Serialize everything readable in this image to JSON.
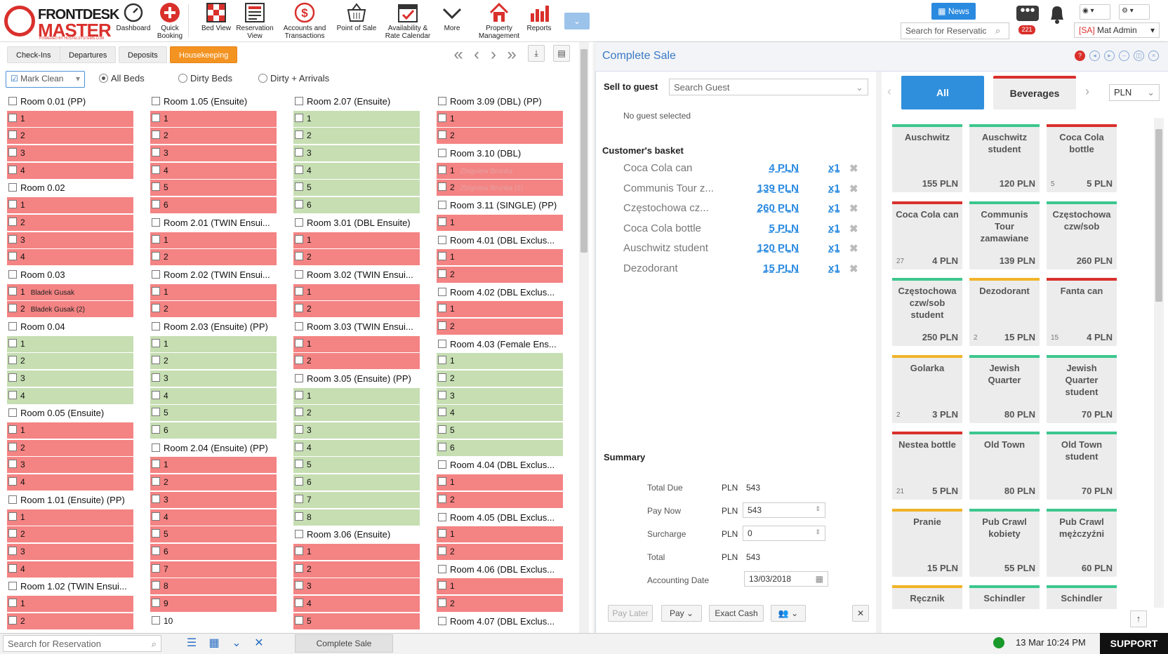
{
  "header": {
    "logo_top": "FRONTDESK",
    "logo_bottom": "MASTER",
    "logo_sub": "POWERED BY HOSTELSYSTEMS.COM",
    "nav": [
      {
        "label": "Dashboard",
        "icon": "dashboard-icon"
      },
      {
        "label": "Quick Booking",
        "icon": "plus-icon"
      },
      {
        "label": "Bed View",
        "icon": "grid-icon"
      },
      {
        "label": "Reservation View",
        "icon": "list-icon"
      },
      {
        "label": "Accounts and Transactions",
        "icon": "dollar-icon"
      },
      {
        "label": "Point of Sale",
        "icon": "basket-icon"
      },
      {
        "label": "Availability & Rate Calendar",
        "icon": "calendar-icon"
      },
      {
        "label": "More",
        "icon": "chevron-down-icon"
      },
      {
        "label": "Property Management",
        "icon": "home-icon"
      },
      {
        "label": "Reports",
        "icon": "bar-chart-icon"
      }
    ],
    "news_label": "News",
    "search_placeholder": "Search for Reservatic",
    "notifications_count": "221",
    "user_prefix": "[SA]",
    "user_name": "Mat Admin"
  },
  "tabs": [
    "Check-Ins",
    "Departures",
    "Deposits",
    "Housekeeping"
  ],
  "filters": {
    "mark_clean": "Mark Clean",
    "options": [
      "All Beds",
      "Dirty Beds",
      "Dirty + Arrivals"
    ],
    "selected": "All Beds"
  },
  "rooms_columns": [
    [
      {
        "name": "Room 0.01 (PP)",
        "beds": [
          [
            "1",
            "red",
            ""
          ],
          [
            "2",
            "red",
            ""
          ],
          [
            "3",
            "red",
            ""
          ],
          [
            "4",
            "red",
            ""
          ]
        ]
      },
      {
        "name": "Room 0.02",
        "beds": [
          [
            "1",
            "red",
            ""
          ],
          [
            "2",
            "red",
            ""
          ],
          [
            "3",
            "red",
            ""
          ],
          [
            "4",
            "red",
            ""
          ]
        ]
      },
      {
        "name": "Room 0.03",
        "beds": [
          [
            "1",
            "red",
            "Bladek Gusak"
          ],
          [
            "2",
            "red",
            "Bladek Gusak (2)"
          ]
        ]
      },
      {
        "name": "Room 0.04",
        "beds": [
          [
            "1",
            "green",
            ""
          ],
          [
            "2",
            "green",
            ""
          ],
          [
            "3",
            "green",
            ""
          ],
          [
            "4",
            "green",
            ""
          ]
        ]
      },
      {
        "name": "Room 0.05 (Ensuite)",
        "beds": [
          [
            "1",
            "red",
            ""
          ],
          [
            "2",
            "red",
            ""
          ],
          [
            "3",
            "red",
            ""
          ],
          [
            "4",
            "red",
            ""
          ]
        ]
      },
      {
        "name": "Room 1.01 (Ensuite) (PP)",
        "beds": [
          [
            "1",
            "red",
            ""
          ],
          [
            "2",
            "red",
            ""
          ],
          [
            "3",
            "red",
            ""
          ],
          [
            "4",
            "red",
            ""
          ]
        ]
      },
      {
        "name": "Room 1.02 (TWIN Ensui...",
        "beds": [
          [
            "1",
            "red",
            ""
          ],
          [
            "2",
            "red",
            ""
          ]
        ]
      }
    ],
    [
      {
        "name": "Room 1.05 (Ensuite)",
        "beds": [
          [
            "1",
            "red",
            ""
          ],
          [
            "2",
            "red",
            ""
          ],
          [
            "3",
            "red",
            ""
          ],
          [
            "4",
            "red",
            ""
          ],
          [
            "5",
            "red",
            ""
          ],
          [
            "6",
            "red",
            ""
          ]
        ]
      },
      {
        "name": "Room 2.01 (TWIN Ensui...",
        "beds": [
          [
            "1",
            "red",
            ""
          ],
          [
            "2",
            "red",
            ""
          ]
        ]
      },
      {
        "name": "Room 2.02 (TWIN Ensui...",
        "beds": [
          [
            "1",
            "red",
            ""
          ],
          [
            "2",
            "red",
            ""
          ]
        ]
      },
      {
        "name": "Room 2.03 (Ensuite) (PP)",
        "beds": [
          [
            "1",
            "green",
            ""
          ],
          [
            "2",
            "green",
            ""
          ],
          [
            "3",
            "green",
            ""
          ],
          [
            "4",
            "green",
            ""
          ],
          [
            "5",
            "green",
            ""
          ],
          [
            "6",
            "green",
            ""
          ]
        ]
      },
      {
        "name": "Room 2.04 (Ensuite) (PP)",
        "beds": [
          [
            "1",
            "red",
            ""
          ],
          [
            "2",
            "red",
            ""
          ],
          [
            "3",
            "red",
            ""
          ],
          [
            "4",
            "red",
            ""
          ],
          [
            "5",
            "red",
            ""
          ],
          [
            "6",
            "red",
            ""
          ],
          [
            "7",
            "red",
            ""
          ],
          [
            "8",
            "red",
            ""
          ],
          [
            "9",
            "red",
            ""
          ],
          [
            "10",
            "white",
            ""
          ]
        ]
      }
    ],
    [
      {
        "name": "Room 2.07 (Ensuite)",
        "beds": [
          [
            "1",
            "green",
            ""
          ],
          [
            "2",
            "green",
            ""
          ],
          [
            "3",
            "green",
            ""
          ],
          [
            "4",
            "green",
            ""
          ],
          [
            "5",
            "green",
            ""
          ],
          [
            "6",
            "green",
            ""
          ]
        ]
      },
      {
        "name": "Room 3.01 (DBL Ensuite)",
        "beds": [
          [
            "1",
            "red",
            ""
          ],
          [
            "2",
            "red",
            ""
          ]
        ]
      },
      {
        "name": "Room 3.02 (TWIN Ensui...",
        "beds": [
          [
            "1",
            "red",
            ""
          ],
          [
            "2",
            "red",
            ""
          ]
        ]
      },
      {
        "name": "Room 3.03 (TWIN Ensui...",
        "beds": [
          [
            "1",
            "red",
            ""
          ],
          [
            "2",
            "red",
            ""
          ]
        ]
      },
      {
        "name": "Room 3.05 (Ensuite) (PP)",
        "beds": [
          [
            "1",
            "green",
            ""
          ],
          [
            "2",
            "green",
            ""
          ],
          [
            "3",
            "green",
            ""
          ],
          [
            "4",
            "green",
            ""
          ],
          [
            "5",
            "green",
            ""
          ],
          [
            "6",
            "green",
            ""
          ],
          [
            "7",
            "green",
            ""
          ],
          [
            "8",
            "green",
            ""
          ]
        ]
      },
      {
        "name": "Room 3.06 (Ensuite)",
        "beds": [
          [
            "1",
            "red",
            ""
          ],
          [
            "2",
            "red",
            ""
          ],
          [
            "3",
            "red",
            ""
          ],
          [
            "4",
            "red",
            ""
          ],
          [
            "5",
            "red",
            ""
          ]
        ]
      }
    ],
    [
      {
        "name": "Room 3.09 (DBL) (PP)",
        "beds": [
          [
            "1",
            "red",
            ""
          ],
          [
            "2",
            "red",
            ""
          ]
        ]
      },
      {
        "name": "Room 3.10 (DBL)",
        "beds": [
          [
            "1",
            "red",
            "Zbigniew Brunka"
          ],
          [
            "2",
            "red",
            "Zbigniew Brunka (2)"
          ]
        ]
      },
      {
        "name": "Room 3.11 (SINGLE) (PP)",
        "beds": [
          [
            "1",
            "red",
            ""
          ]
        ]
      },
      {
        "name": "Room 4.01 (DBL Exclus...",
        "beds": [
          [
            "1",
            "red",
            ""
          ],
          [
            "2",
            "red",
            ""
          ]
        ]
      },
      {
        "name": "Room 4.02 (DBL Exclus...",
        "beds": [
          [
            "1",
            "red",
            ""
          ],
          [
            "2",
            "red",
            ""
          ]
        ]
      },
      {
        "name": "Room 4.03 (Female Ens...",
        "beds": [
          [
            "1",
            "green",
            ""
          ],
          [
            "2",
            "green",
            ""
          ],
          [
            "3",
            "green",
            ""
          ],
          [
            "4",
            "green",
            ""
          ],
          [
            "5",
            "green",
            ""
          ],
          [
            "6",
            "green",
            ""
          ]
        ]
      },
      {
        "name": "Room 4.04 (DBL Exclus...",
        "beds": [
          [
            "1",
            "red",
            ""
          ],
          [
            "2",
            "red",
            ""
          ]
        ]
      },
      {
        "name": "Room 4.05 (DBL Exclus...",
        "beds": [
          [
            "1",
            "red",
            ""
          ],
          [
            "2",
            "red",
            ""
          ]
        ]
      },
      {
        "name": "Room 4.06 (DBL Exclus...",
        "beds": [
          [
            "1",
            "red",
            ""
          ],
          [
            "2",
            "red",
            ""
          ]
        ]
      },
      {
        "name": "Room 4.07 (DBL Exclus...",
        "beds": []
      }
    ]
  ],
  "sale": {
    "title": "Complete Sale",
    "sell_to_guest": "Sell to guest",
    "search_guest_placeholder": "Search Guest",
    "no_guest": "No guest selected",
    "basket_label": "Customer's basket",
    "basket": [
      {
        "name": "Coca Cola can",
        "price": "4 PLN",
        "qty": "x1"
      },
      {
        "name": "Communis Tour z...",
        "price": "139 PLN",
        "qty": "x1"
      },
      {
        "name": "Częstochowa cz...",
        "price": "260 PLN",
        "qty": "x1"
      },
      {
        "name": "Coca Cola bottle",
        "price": "5 PLN",
        "qty": "x1"
      },
      {
        "name": "Auschwitz student",
        "price": "120 PLN",
        "qty": "x1"
      },
      {
        "name": "Dezodorant",
        "price": "15 PLN",
        "qty": "x1"
      }
    ],
    "summary_label": "Summary",
    "summary": {
      "total_due_label": "Total Due",
      "total_due_cur": "PLN",
      "total_due": "543",
      "pay_now_label": "Pay Now",
      "pay_now_cur": "PLN",
      "pay_now": "543",
      "surcharge_label": "Surcharge",
      "surcharge_cur": "PLN",
      "surcharge": "0",
      "total_label": "Total",
      "total_cur": "PLN",
      "total": "543",
      "accounting_label": "Accounting Date",
      "accounting_date": "13/03/2018"
    },
    "footer": {
      "pay_later": "Pay Later",
      "pay": "Pay",
      "exact_cash": "Exact Cash"
    }
  },
  "pos": {
    "categories": [
      "All",
      "Beverages"
    ],
    "currency": "PLN",
    "products": [
      {
        "name": "Auschwitz",
        "price": "155 PLN",
        "stock": "",
        "color": "#3cc78e"
      },
      {
        "name": "Auschwitz student",
        "price": "120 PLN",
        "stock": "",
        "color": "#3cc78e"
      },
      {
        "name": "Coca Cola bottle",
        "price": "5 PLN",
        "stock": "5",
        "color": "#d9302c"
      },
      {
        "name": "Coca Cola can",
        "price": "4 PLN",
        "stock": "27",
        "color": "#d9302c"
      },
      {
        "name": "Communis Tour zamawiane",
        "price": "139 PLN",
        "stock": "",
        "color": "#3cc78e"
      },
      {
        "name": "Częstochowa czw/sob",
        "price": "260 PLN",
        "stock": "",
        "color": "#3cc78e"
      },
      {
        "name": "Częstochowa czw/sob student",
        "price": "250 PLN",
        "stock": "",
        "color": "#3cc78e"
      },
      {
        "name": "Dezodorant",
        "price": "15 PLN",
        "stock": "2",
        "color": "#f0b429"
      },
      {
        "name": "Fanta can",
        "price": "4 PLN",
        "stock": "15",
        "color": "#d9302c"
      },
      {
        "name": "Golarka",
        "price": "3 PLN",
        "stock": "2",
        "color": "#f0b429"
      },
      {
        "name": "Jewish Quarter",
        "price": "80 PLN",
        "stock": "",
        "color": "#3cc78e"
      },
      {
        "name": "Jewish Quarter student",
        "price": "70 PLN",
        "stock": "",
        "color": "#3cc78e"
      },
      {
        "name": "Nestea bottle",
        "price": "5 PLN",
        "stock": "21",
        "color": "#d9302c"
      },
      {
        "name": "Old Town",
        "price": "80 PLN",
        "stock": "",
        "color": "#3cc78e"
      },
      {
        "name": "Old Town student",
        "price": "70 PLN",
        "stock": "",
        "color": "#3cc78e"
      },
      {
        "name": "Pranie",
        "price": "15 PLN",
        "stock": "",
        "color": "#f0b429"
      },
      {
        "name": "Pub Crawl kobiety",
        "price": "55 PLN",
        "stock": "",
        "color": "#3cc78e"
      },
      {
        "name": "Pub Crawl mężczyźni",
        "price": "60 PLN",
        "stock": "",
        "color": "#3cc78e"
      },
      {
        "name": "Ręcznik",
        "price": "",
        "stock": "",
        "color": "#f0b429"
      },
      {
        "name": "Schindler",
        "price": "",
        "stock": "",
        "color": "#3cc78e"
      },
      {
        "name": "Schindler",
        "price": "",
        "stock": "",
        "color": "#3cc78e"
      }
    ]
  },
  "statusbar": {
    "search_placeholder": "Search for Reservation",
    "tab": "Complete Sale",
    "datetime": "13 Mar 10:24 PM",
    "support": "SUPPORT"
  }
}
